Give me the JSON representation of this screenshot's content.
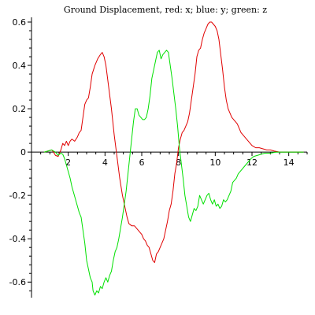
{
  "chart_data": {
    "type": "line",
    "title": "Ground Displacement, red: x; blue: y; green: z",
    "xlabel": "",
    "ylabel": "",
    "xlim": [
      0,
      15
    ],
    "ylim": [
      -0.65,
      0.6
    ],
    "x_ticks": [
      2,
      4,
      6,
      8,
      10,
      12,
      14
    ],
    "y_ticks": [
      -0.6,
      -0.4,
      -0.2,
      0,
      0.2,
      0.4,
      0.6
    ],
    "grid": false,
    "legend": "none",
    "series": [
      {
        "color": "#e00000",
        "points": [
          [
            0.7,
            0.0
          ],
          [
            0.9,
            0.005
          ],
          [
            1.1,
            0.01
          ],
          [
            1.2,
            0.0
          ],
          [
            1.3,
            -0.015
          ],
          [
            1.45,
            -0.02
          ],
          [
            1.6,
            0.01
          ],
          [
            1.7,
            0.04
          ],
          [
            1.8,
            0.03
          ],
          [
            1.9,
            0.05
          ],
          [
            2.0,
            0.03
          ],
          [
            2.1,
            0.05
          ],
          [
            2.2,
            0.06
          ],
          [
            2.35,
            0.05
          ],
          [
            2.5,
            0.07
          ],
          [
            2.6,
            0.09
          ],
          [
            2.7,
            0.1
          ],
          [
            2.8,
            0.16
          ],
          [
            2.9,
            0.22
          ],
          [
            3.0,
            0.24
          ],
          [
            3.1,
            0.25
          ],
          [
            3.2,
            0.3
          ],
          [
            3.3,
            0.36
          ],
          [
            3.45,
            0.4
          ],
          [
            3.6,
            0.43
          ],
          [
            3.75,
            0.45
          ],
          [
            3.85,
            0.46
          ],
          [
            3.95,
            0.44
          ],
          [
            4.05,
            0.4
          ],
          [
            4.2,
            0.3
          ],
          [
            4.35,
            0.2
          ],
          [
            4.5,
            0.08
          ],
          [
            4.65,
            -0.02
          ],
          [
            4.8,
            -0.12
          ],
          [
            4.95,
            -0.2
          ],
          [
            5.1,
            -0.26
          ],
          [
            5.2,
            -0.3
          ],
          [
            5.3,
            -0.33
          ],
          [
            5.45,
            -0.34
          ],
          [
            5.6,
            -0.34
          ],
          [
            5.7,
            -0.35
          ],
          [
            5.8,
            -0.36
          ],
          [
            5.9,
            -0.37
          ],
          [
            6.0,
            -0.38
          ],
          [
            6.1,
            -0.4
          ],
          [
            6.2,
            -0.41
          ],
          [
            6.3,
            -0.43
          ],
          [
            6.4,
            -0.44
          ],
          [
            6.5,
            -0.47
          ],
          [
            6.6,
            -0.5
          ],
          [
            6.7,
            -0.51
          ],
          [
            6.8,
            -0.47
          ],
          [
            6.9,
            -0.46
          ],
          [
            7.0,
            -0.44
          ],
          [
            7.1,
            -0.42
          ],
          [
            7.2,
            -0.4
          ],
          [
            7.3,
            -0.36
          ],
          [
            7.4,
            -0.32
          ],
          [
            7.5,
            -0.27
          ],
          [
            7.6,
            -0.24
          ],
          [
            7.7,
            -0.18
          ],
          [
            7.8,
            -0.1
          ],
          [
            7.9,
            -0.05
          ],
          [
            8.0,
            0.02
          ],
          [
            8.1,
            0.06
          ],
          [
            8.2,
            0.09
          ],
          [
            8.3,
            0.1
          ],
          [
            8.4,
            0.12
          ],
          [
            8.5,
            0.14
          ],
          [
            8.6,
            0.18
          ],
          [
            8.7,
            0.24
          ],
          [
            8.8,
            0.3
          ],
          [
            8.9,
            0.36
          ],
          [
            9.0,
            0.44
          ],
          [
            9.1,
            0.47
          ],
          [
            9.2,
            0.48
          ],
          [
            9.3,
            0.52
          ],
          [
            9.4,
            0.55
          ],
          [
            9.5,
            0.57
          ],
          [
            9.6,
            0.59
          ],
          [
            9.7,
            0.6
          ],
          [
            9.8,
            0.6
          ],
          [
            9.9,
            0.59
          ],
          [
            10.0,
            0.58
          ],
          [
            10.1,
            0.56
          ],
          [
            10.2,
            0.52
          ],
          [
            10.3,
            0.45
          ],
          [
            10.4,
            0.38
          ],
          [
            10.5,
            0.3
          ],
          [
            10.6,
            0.24
          ],
          [
            10.7,
            0.2
          ],
          [
            10.8,
            0.18
          ],
          [
            10.9,
            0.16
          ],
          [
            11.0,
            0.15
          ],
          [
            11.1,
            0.14
          ],
          [
            11.2,
            0.13
          ],
          [
            11.3,
            0.11
          ],
          [
            11.4,
            0.09
          ],
          [
            11.5,
            0.08
          ],
          [
            11.6,
            0.07
          ],
          [
            11.7,
            0.06
          ],
          [
            11.8,
            0.05
          ],
          [
            11.9,
            0.04
          ],
          [
            12.0,
            0.03
          ],
          [
            12.1,
            0.025
          ],
          [
            12.2,
            0.02
          ],
          [
            12.4,
            0.02
          ],
          [
            12.6,
            0.015
          ],
          [
            12.8,
            0.01
          ],
          [
            13.0,
            0.01
          ],
          [
            13.2,
            0.005
          ],
          [
            13.5,
            0.0
          ],
          [
            14.0,
            0.0
          ],
          [
            14.5,
            0.0
          ],
          [
            14.8,
            0.0
          ]
        ]
      },
      {
        "color": "#00e000",
        "points": [
          [
            0.7,
            0.0
          ],
          [
            0.9,
            0.005
          ],
          [
            1.1,
            0.01
          ],
          [
            1.3,
            0.0
          ],
          [
            1.45,
            -0.015
          ],
          [
            1.6,
            -0.005
          ],
          [
            1.7,
            -0.01
          ],
          [
            1.8,
            -0.03
          ],
          [
            1.9,
            -0.06
          ],
          [
            2.0,
            -0.09
          ],
          [
            2.1,
            -0.12
          ],
          [
            2.2,
            -0.16
          ],
          [
            2.3,
            -0.19
          ],
          [
            2.4,
            -0.22
          ],
          [
            2.5,
            -0.25
          ],
          [
            2.6,
            -0.28
          ],
          [
            2.7,
            -0.3
          ],
          [
            2.8,
            -0.36
          ],
          [
            2.9,
            -0.42
          ],
          [
            3.0,
            -0.5
          ],
          [
            3.1,
            -0.54
          ],
          [
            3.2,
            -0.58
          ],
          [
            3.3,
            -0.6
          ],
          [
            3.35,
            -0.64
          ],
          [
            3.45,
            -0.66
          ],
          [
            3.55,
            -0.64
          ],
          [
            3.65,
            -0.65
          ],
          [
            3.75,
            -0.62
          ],
          [
            3.85,
            -0.63
          ],
          [
            3.95,
            -0.6
          ],
          [
            4.05,
            -0.58
          ],
          [
            4.15,
            -0.6
          ],
          [
            4.25,
            -0.57
          ],
          [
            4.35,
            -0.55
          ],
          [
            4.45,
            -0.5
          ],
          [
            4.55,
            -0.46
          ],
          [
            4.65,
            -0.44
          ],
          [
            4.75,
            -0.4
          ],
          [
            4.85,
            -0.35
          ],
          [
            4.95,
            -0.3
          ],
          [
            5.05,
            -0.24
          ],
          [
            5.15,
            -0.18
          ],
          [
            5.25,
            -0.1
          ],
          [
            5.35,
            -0.02
          ],
          [
            5.45,
            0.06
          ],
          [
            5.55,
            0.14
          ],
          [
            5.65,
            0.2
          ],
          [
            5.75,
            0.2
          ],
          [
            5.85,
            0.17
          ],
          [
            5.95,
            0.16
          ],
          [
            6.05,
            0.15
          ],
          [
            6.15,
            0.15
          ],
          [
            6.25,
            0.16
          ],
          [
            6.35,
            0.2
          ],
          [
            6.45,
            0.26
          ],
          [
            6.55,
            0.34
          ],
          [
            6.65,
            0.38
          ],
          [
            6.75,
            0.42
          ],
          [
            6.85,
            0.46
          ],
          [
            6.95,
            0.47
          ],
          [
            7.05,
            0.43
          ],
          [
            7.15,
            0.45
          ],
          [
            7.25,
            0.46
          ],
          [
            7.35,
            0.47
          ],
          [
            7.45,
            0.46
          ],
          [
            7.55,
            0.4
          ],
          [
            7.65,
            0.34
          ],
          [
            7.75,
            0.27
          ],
          [
            7.85,
            0.2
          ],
          [
            7.95,
            0.12
          ],
          [
            8.05,
            0.02
          ],
          [
            8.15,
            -0.05
          ],
          [
            8.25,
            -0.12
          ],
          [
            8.35,
            -0.2
          ],
          [
            8.45,
            -0.25
          ],
          [
            8.55,
            -0.3
          ],
          [
            8.65,
            -0.32
          ],
          [
            8.75,
            -0.29
          ],
          [
            8.85,
            -0.26
          ],
          [
            8.95,
            -0.27
          ],
          [
            9.05,
            -0.25
          ],
          [
            9.15,
            -0.2
          ],
          [
            9.25,
            -0.22
          ],
          [
            9.35,
            -0.24
          ],
          [
            9.45,
            -0.22
          ],
          [
            9.55,
            -0.2
          ],
          [
            9.65,
            -0.19
          ],
          [
            9.75,
            -0.22
          ],
          [
            9.85,
            -0.24
          ],
          [
            9.95,
            -0.22
          ],
          [
            10.05,
            -0.25
          ],
          [
            10.15,
            -0.24
          ],
          [
            10.25,
            -0.26
          ],
          [
            10.35,
            -0.25
          ],
          [
            10.45,
            -0.22
          ],
          [
            10.55,
            -0.23
          ],
          [
            10.65,
            -0.22
          ],
          [
            10.75,
            -0.2
          ],
          [
            10.85,
            -0.18
          ],
          [
            10.95,
            -0.14
          ],
          [
            11.05,
            -0.13
          ],
          [
            11.15,
            -0.12
          ],
          [
            11.25,
            -0.1
          ],
          [
            11.35,
            -0.09
          ],
          [
            11.45,
            -0.08
          ],
          [
            11.55,
            -0.07
          ],
          [
            11.65,
            -0.06
          ],
          [
            11.75,
            -0.05
          ],
          [
            11.85,
            -0.04
          ],
          [
            11.95,
            -0.03
          ],
          [
            12.1,
            -0.02
          ],
          [
            12.3,
            -0.015
          ],
          [
            12.5,
            -0.01
          ],
          [
            12.7,
            -0.005
          ],
          [
            13.0,
            -0.005
          ],
          [
            13.3,
            0.0
          ],
          [
            13.7,
            0.0
          ],
          [
            14.2,
            0.0
          ],
          [
            14.8,
            0.0
          ]
        ]
      }
    ]
  }
}
